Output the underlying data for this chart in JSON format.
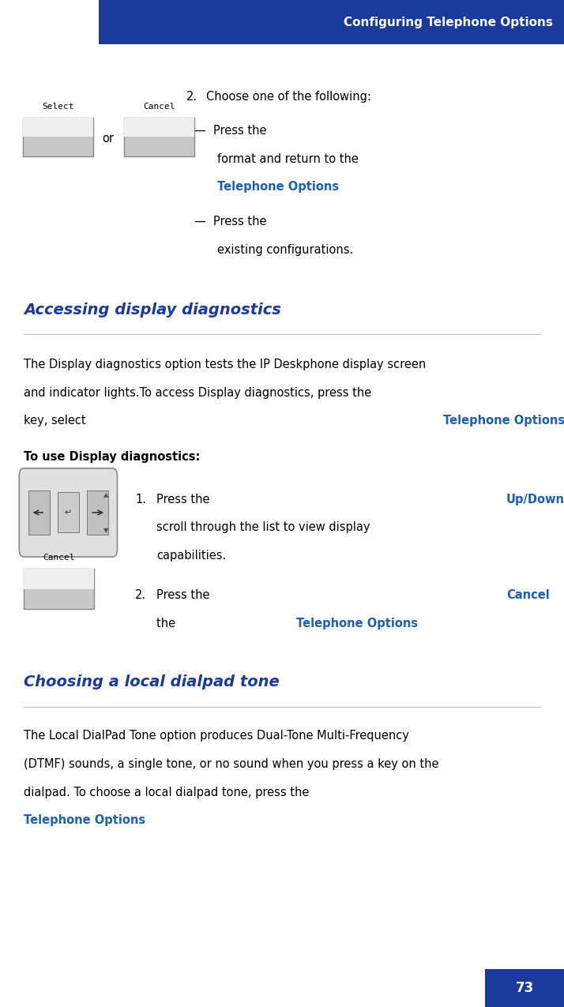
{
  "page_width": 7.14,
  "page_height": 12.75,
  "bg_color": "#ffffff",
  "header_color": "#1a3a9c",
  "header_text": "Configuring Telephone Options",
  "header_text_color": "#ffffff",
  "accent_color": "#1a3a9c",
  "page_number": "73",
  "body_text_color": "#000000",
  "highlight_color": "#1a5fb4",
  "section_heading_1": "Accessing display diagnostics",
  "section_heading_2": "Choosing a local dialpad tone"
}
